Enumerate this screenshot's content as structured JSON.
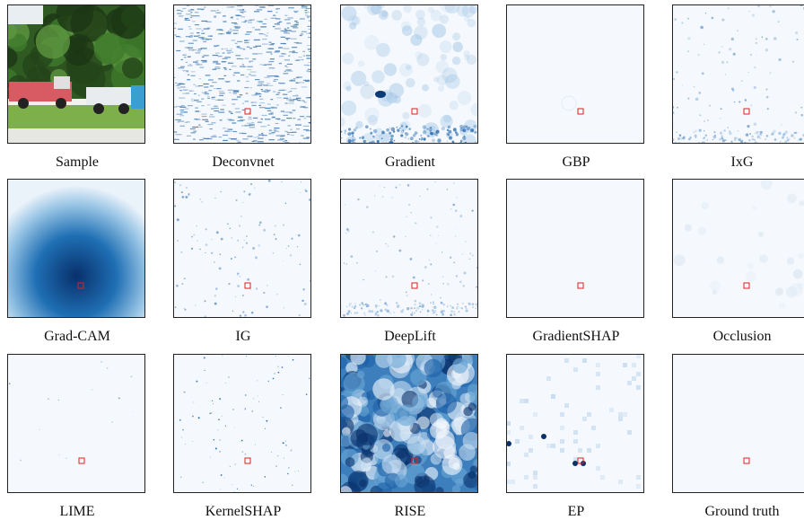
{
  "panels": [
    {
      "label": "Sample"
    },
    {
      "label": "Deconvnet"
    },
    {
      "label": "Gradient"
    },
    {
      "label": "GBP"
    },
    {
      "label": "IxG"
    },
    {
      "label": "Grad-CAM"
    },
    {
      "label": "IG"
    },
    {
      "label": "DeepLift"
    },
    {
      "label": "GradientSHAP"
    },
    {
      "label": "Occlusion"
    },
    {
      "label": "LIME"
    },
    {
      "label": "KernelSHAP"
    },
    {
      "label": "RISE"
    },
    {
      "label": "EP"
    },
    {
      "label": "Ground truth"
    }
  ]
}
